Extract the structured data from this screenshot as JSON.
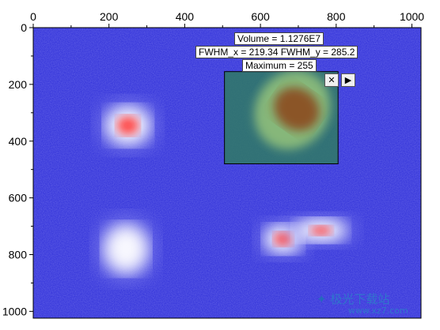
{
  "chart_data": {
    "type": "heatmap",
    "title": "",
    "xlabel": "",
    "ylabel": "",
    "xlim": [
      0,
      1024
    ],
    "ylim": [
      1024,
      0
    ],
    "x_axis_position": "top",
    "x_ticks": [
      0,
      200,
      400,
      600,
      800,
      1000
    ],
    "y_ticks": [
      0,
      200,
      400,
      600,
      800,
      1000
    ],
    "x_tick_labels": [
      "0",
      "200",
      "400",
      "600",
      "800",
      "1000"
    ],
    "y_tick_labels": [
      "0",
      "200",
      "400",
      "600",
      "800",
      "1000"
    ],
    "z_range": [
      0,
      255
    ],
    "colormap": [
      "#2a2ad8",
      "#ffffff",
      "#ff3030"
    ],
    "blobs": [
      {
        "cx": 250,
        "cy": 345,
        "sx": 65,
        "sy": 75,
        "peak": 255
      },
      {
        "cx": 245,
        "cy": 780,
        "sx": 65,
        "sy": 95,
        "peak": 200
      },
      {
        "cx": 660,
        "cy": 745,
        "sx": 55,
        "sy": 55,
        "peak": 255
      },
      {
        "cx": 760,
        "cy": 715,
        "sx": 75,
        "sy": 45,
        "peak": 215
      }
    ],
    "roi": {
      "x0": 505,
      "x1": 805,
      "y0": 155,
      "y1": 480,
      "volume": "Volume = 1.1276E7",
      "fwhm": "FWHM_x = 219.34 FWHM_y = 285.2",
      "maximum": "Maximum = 255",
      "close_symbol": "✕",
      "menu_symbol": "▶"
    }
  },
  "watermark": {
    "text": "极光下载站",
    "url": "www.xz7.com",
    "icon": "aurora-logo-icon"
  }
}
